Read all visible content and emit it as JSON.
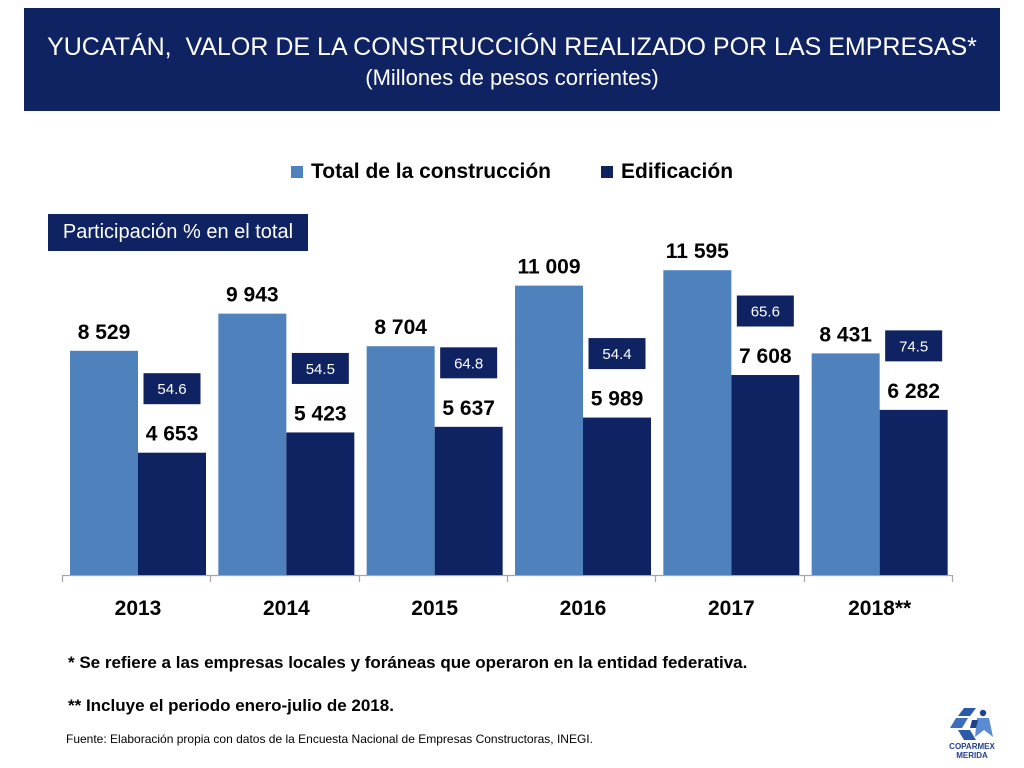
{
  "colors": {
    "banner": "#0F2262",
    "banner_text": "#FFFFFF",
    "axis": "#A6A6A6",
    "share_box": "#0F2262",
    "logo": "#2B5BA8"
  },
  "chart_data": {
    "type": "bar",
    "title": "YUCATÁN,  VALOR DE LA CONSTRUCCIÓN REALIZADO POR LAS EMPRESAS*",
    "subtitle": "(Millones de pesos corrientes)",
    "categories": [
      "2013",
      "2014",
      "2015",
      "2016",
      "2017",
      "2018**"
    ],
    "series": [
      {
        "name": "Total de la construcción",
        "color": "#4F81BD",
        "values": [
          8529,
          9943,
          8704,
          11009,
          11595,
          8431
        ],
        "data_labels": [
          "8 529",
          "9 943",
          "8 704",
          "11 009",
          "11 595",
          "8 431"
        ]
      },
      {
        "name": "Edificación",
        "color": "#0F2262",
        "values": [
          4653,
          5423,
          5637,
          5989,
          7608,
          6282
        ],
        "data_labels": [
          "4 653",
          "5 423",
          "5 637",
          "5 989",
          "7 608",
          "6 282"
        ]
      }
    ],
    "share": {
      "label": "Participación % en el total",
      "values": [
        54.6,
        54.5,
        64.8,
        54.4,
        65.6,
        74.5
      ]
    },
    "ylim": [
      0,
      14000
    ],
    "grid": false,
    "legend": "top"
  },
  "notes": [
    "* Se refiere a las empresas locales y foráneas que operaron en la entidad federativa.",
    "** Incluye el periodo enero-julio de 2018."
  ],
  "source": "Fuente: Elaboración propia con datos de la Encuesta Nacional de Empresas Constructoras, INEGI.",
  "logo": {
    "icon": "coparmex-logo-icon",
    "line1": "COPARMEX",
    "line2": "MERIDA"
  }
}
